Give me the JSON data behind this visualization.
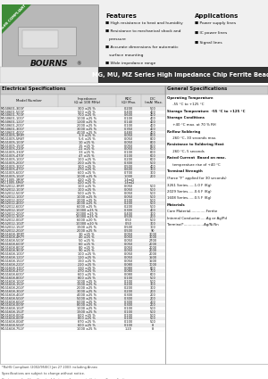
{
  "title_main": "MG, MU, MZ Series High Impedance Chip Ferrite Beads",
  "company": "BOURNS",
  "badge_text": "RoHS COMPLIANT",
  "badge_color": "#3d8b37",
  "features_title": "Features",
  "features": [
    "High resistance to heat and humidity",
    "Resistance to mechanical shock and pressure",
    "Accurate dimensions for automatic surface mounting",
    "Wide impedance range"
  ],
  "applications_title": "Applications",
  "applications": [
    "Power supply lines",
    "IC power lines",
    "Signal lines"
  ],
  "electrical_title": "Electrical Specifications",
  "general_title": "General Specifications",
  "table_data": [
    [
      "MLG0601-300Y",
      "300 ±25 %",
      "0.200",
      "500"
    ],
    [
      "MLG0601-500Y",
      "500 ±25 %",
      "0.400",
      "400"
    ],
    [
      "MLG0601-700Y",
      "700 ±25 %",
      "0.600",
      "400"
    ],
    [
      "MLG0601-101Y",
      "1000 ±25 %",
      "0.100",
      "400"
    ],
    [
      "MLG0601-121Y",
      "1200 ±25 %",
      "0.140",
      "400"
    ],
    [
      "MLG0601-201Y",
      "2000 ±25 %",
      "0.100",
      "400"
    ],
    [
      "MLG0601-301Y",
      "3000 ±25 %",
      "0.350",
      "400"
    ],
    [
      "MLG0601-401Y",
      "4000 ±25 %",
      "0.480",
      "400"
    ],
    [
      "MLG1005-3R9Y",
      "3.9 ±25 %",
      "0.050",
      "800"
    ],
    [
      "MLG1005-5R6Y",
      "5.6 ±25 %",
      "0.050",
      "800"
    ],
    [
      "MLG1005-100Y",
      "10 ±25 %",
      "0.050",
      "800"
    ],
    [
      "MLG1005-150Y",
      "15 ±25 %",
      "0.050",
      "800"
    ],
    [
      "MLG1005-220Y",
      "22 ±25 %",
      "0.050",
      "600"
    ],
    [
      "MLG1005-330Y",
      "33 ±25 %",
      "0.100",
      "600"
    ],
    [
      "MLG1005-470Y",
      "47 ±25 %",
      "0.100",
      "600"
    ],
    [
      "MLG1005-101Y",
      "100 ±25 %",
      "0.200",
      "600"
    ],
    [
      "MLG1005-201Y",
      "200 ±25 %",
      "0.300",
      "500"
    ],
    [
      "MLG1005-301Y",
      "300 ±25 %",
      "0.500",
      "400"
    ],
    [
      "MLG1005-471Y",
      "470 ±25 %",
      "0.600",
      "300"
    ],
    [
      "MLG1005-601Y",
      "600 ±25 %",
      "0.700",
      "300"
    ],
    [
      "MLG1005-102Y",
      "1000 ±25 %",
      "1.000",
      "200"
    ],
    [
      "MLC1005-3R9Y",
      "420 ±25 %",
      "1.4mΩ",
      ""
    ],
    [
      "MLC1005-5R6Y",
      "420 ±25 %",
      "1.4mΩ",
      ""
    ],
    [
      "MLG2012-3R9Y",
      "100 ±25 %",
      "0.050",
      "500"
    ],
    [
      "MLG2012-100Y",
      "100 ±25 %",
      "0.050",
      "500"
    ],
    [
      "MLG2012-500Y",
      "500 ±25 %",
      "0.050",
      "500"
    ],
    [
      "MLG2012-101Y",
      "1000 ±25 %",
      "0.050",
      "500"
    ],
    [
      "MLG2012-201Y",
      "2000 ±25 %",
      "0.100",
      "500"
    ],
    [
      "MLG2012-401Y",
      "4000 ±25 %",
      "0.200",
      "500"
    ],
    [
      "MLG2012-601Y",
      "6000 ±25 %",
      "0.200",
      "500"
    ],
    [
      "MLG2012-102Y",
      "10000 ±25 %",
      "0.300",
      "400"
    ],
    [
      "MLG2012-202Y",
      "20000 ±25 %",
      "0.400",
      "300"
    ],
    [
      "MLG2012-302Y",
      "30000 ±25 %",
      "0.500",
      "200"
    ],
    [
      "MLG2012-002T",
      "6000 ±20 %",
      "0.50",
      "500"
    ],
    [
      "MLG2012-102T",
      "10000 ±20 %",
      "0.50",
      "300"
    ],
    [
      "MLG2012-152Y",
      "1500 ±25 %",
      "0.500",
      "100"
    ],
    [
      "MLG2012-202Y",
      "2000 ±25 %",
      "0.500",
      "90"
    ],
    [
      "MLG1608-3R9Y",
      "30 ±25 %",
      "0.050",
      "3000"
    ],
    [
      "MLG1608-4R7Y",
      "40 ±25 %",
      "0.050",
      "3000"
    ],
    [
      "MLG1608-500Y",
      "50 ±25 %",
      "0.050",
      "2700"
    ],
    [
      "MLG1608-600Y",
      "60 ±25 %",
      "0.050",
      "2000"
    ],
    [
      "MLG1608-800Y",
      "80 ±25 %",
      "0.050",
      "2000"
    ],
    [
      "MLG1608-900Y",
      "90 ±25 %",
      "0.050",
      "2000"
    ],
    [
      "MLG1608-101Y",
      "100 ±25 %",
      "0.050",
      "2000"
    ],
    [
      "MLG1608-121Y",
      "120 ±25 %",
      "0.050",
      "1500"
    ],
    [
      "MLG1608-151Y",
      "150 ±25 %",
      "0.050",
      "1500"
    ],
    [
      "MLG1608-221Y",
      "220 ±25 %",
      "0.080",
      "1000"
    ],
    [
      "MLG1608-331Y",
      "330 ±25 %",
      "0.080",
      "800"
    ],
    [
      "MLG1608-471Y",
      "470 ±25 %",
      "0.080",
      "700"
    ],
    [
      "MLG1608-601Y",
      "600 ±25 %",
      "0.080",
      "600"
    ],
    [
      "MLG1608-801Y",
      "800 ±25 %",
      "0.100",
      "500"
    ],
    [
      "MLG1608-102Y",
      "1000 ±25 %",
      "0.100",
      "500"
    ],
    [
      "MLG1608-152Y",
      "1500 ±25 %",
      "0.200",
      "300"
    ],
    [
      "MLG1608-202Y",
      "2000 ±25 %",
      "0.200",
      "300"
    ],
    [
      "MLG1608-302Y",
      "3000 ±25 %",
      "0.200",
      "200"
    ],
    [
      "MLG1608-402Y",
      "4000 ±25 %",
      "0.300",
      "200"
    ],
    [
      "MLG1608-502Y",
      "5000 ±25 %",
      "0.300",
      "200"
    ],
    [
      "MLG1608-602Y",
      "6000 ±25 %",
      "0.300",
      "200"
    ],
    [
      "MLG1608-003Y",
      "8000 ±25 %",
      "0.300",
      "200"
    ],
    [
      "MLG1608-102T",
      "1000 ±25 %",
      "0.100",
      "500"
    ],
    [
      "MLG1608-152T",
      "1500 ±25 %",
      "0.100",
      "500"
    ],
    [
      "MLG1608-002T",
      "600 ±25 %",
      "0.100",
      "500"
    ],
    [
      "MLG1608-003T",
      "800 ±25 %",
      "0.100",
      "500"
    ],
    [
      "MLG1608-004T",
      "870 ±25 %",
      "0.100",
      "500"
    ],
    [
      "MLG1608-502Y",
      "600 ±25 %",
      "0.100",
      "8"
    ],
    [
      "MLG1608-752Y",
      "1000 ±25 %",
      "1.20",
      "8"
    ]
  ],
  "gen_lines": [
    {
      "text": "Operating Temperature",
      "bold": true,
      "indent": 0
    },
    {
      "text": "     -55 °C to +125 °C",
      "bold": false,
      "indent": 1
    },
    {
      "text": "Storage Temperature  -55 °C to +125 °C",
      "bold": true,
      "indent": 0
    },
    {
      "text": "Storage Conditions",
      "bold": true,
      "indent": 0
    },
    {
      "text": "     +40 °C max. at 70 % RH",
      "bold": false,
      "indent": 1
    },
    {
      "text": "Reflow Soldering",
      "bold": true,
      "indent": 0
    },
    {
      "text": "     260 °C, 30 seconds max.",
      "bold": false,
      "indent": 1
    },
    {
      "text": "Resistance to Soldering Heat",
      "bold": true,
      "indent": 0
    },
    {
      "text": "     260 °C, 5 seconds",
      "bold": false,
      "indent": 1
    },
    {
      "text": "Rated Current  Based on max.",
      "bold": true,
      "indent": 0
    },
    {
      "text": "     temperature rise of +40 °C",
      "bold": false,
      "indent": 1
    },
    {
      "text": "Terminal Strength",
      "bold": true,
      "indent": 0
    },
    {
      "text": "(Force \"F\" applied for 30 seconds)",
      "bold": false,
      "indent": 0
    },
    {
      "text": "3261 Series......1.0 F (Kg)",
      "bold": false,
      "indent": 1
    },
    {
      "text": "2029 Series......0.6 F (Kg)",
      "bold": false,
      "indent": 1
    },
    {
      "text": "1608 Series......0.5 F (Kg)",
      "bold": false,
      "indent": 1
    },
    {
      "text": "Materials",
      "bold": true,
      "indent": 0
    },
    {
      "text": "Core Material..............Ferrite",
      "bold": false,
      "indent": 0
    },
    {
      "text": "Internal Conductor......Ag or Ag/Pd",
      "bold": false,
      "indent": 0
    },
    {
      "text": "Terminal*..................Ag/Ni/Sn",
      "bold": false,
      "indent": 0
    }
  ],
  "footer_note1": "*RoHS Compliant (2002/95/EC) Jan 27 2003 including Annex",
  "footer_note2": "Specifications are subject to change without notice.",
  "footer_note3": "Customers should verify actual device performance in their specific applications.",
  "bg_color": "#ffffff",
  "title_bar_color": "#333333",
  "title_bar_text": "#ffffff",
  "elec_header_color": "#cccccc",
  "gen_header_color": "#cccccc",
  "row_even": "#eeeeee",
  "row_odd": "#ffffff"
}
